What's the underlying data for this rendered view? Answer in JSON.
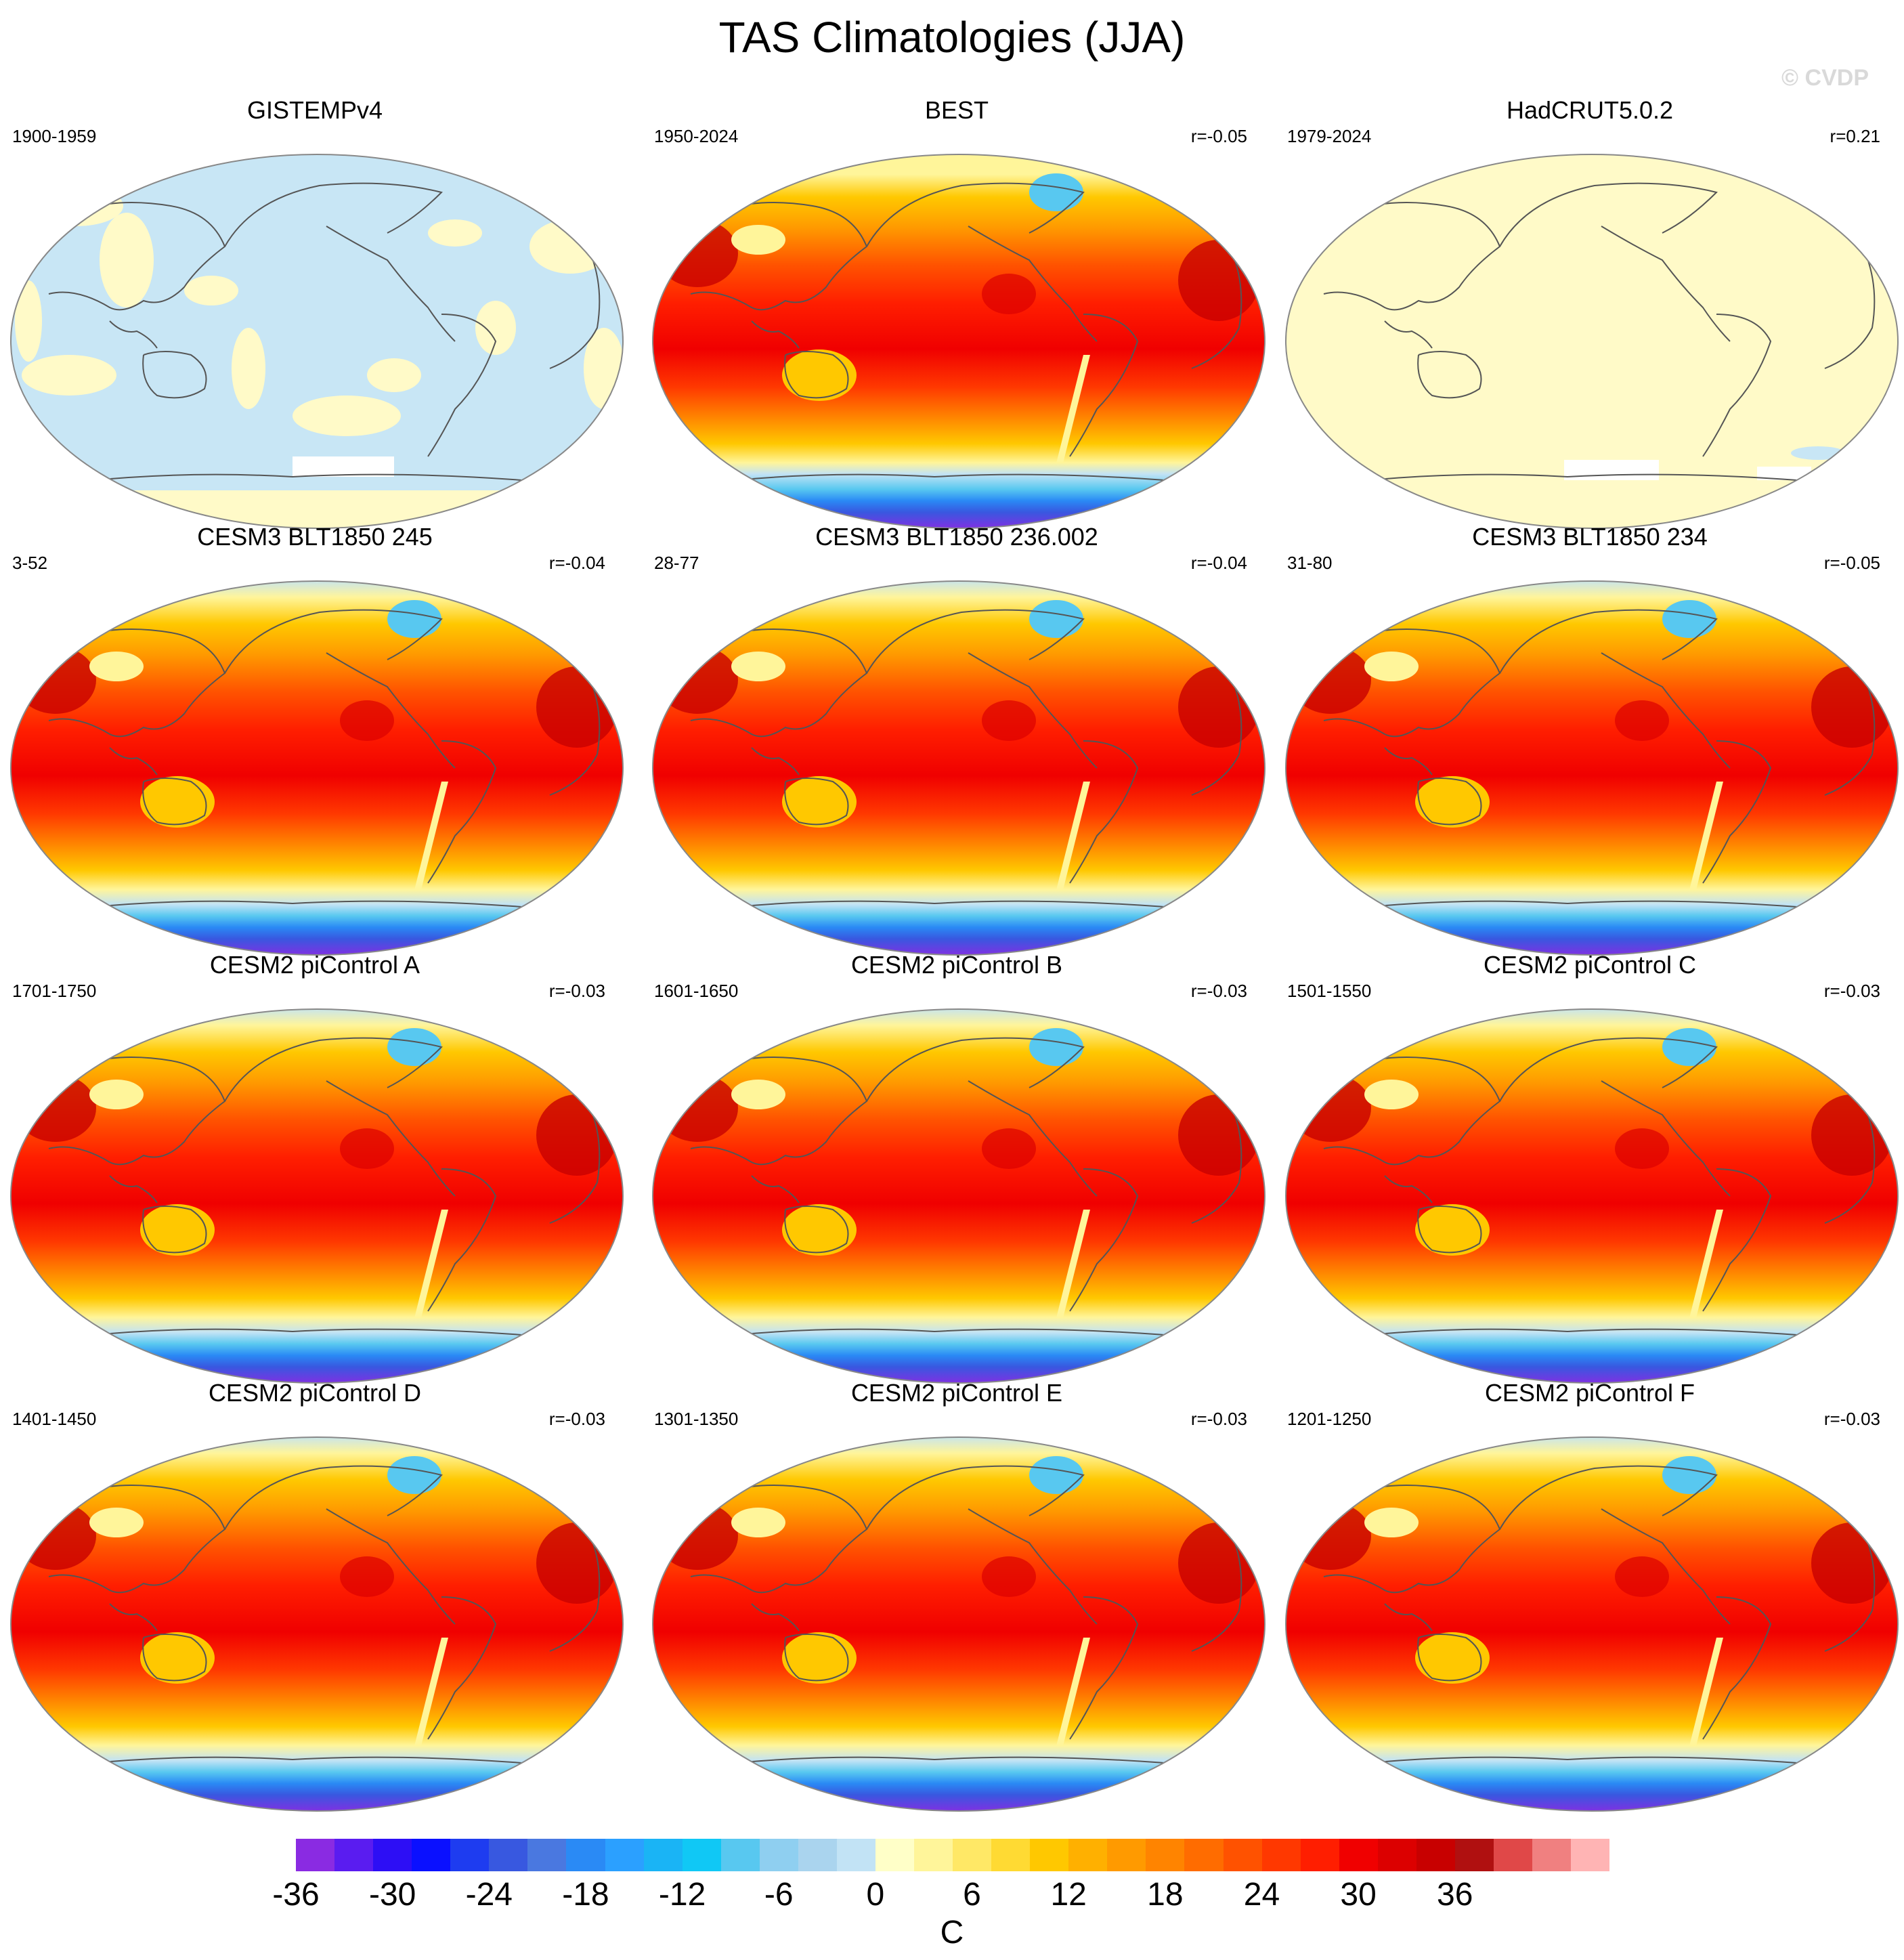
{
  "title": "TAS Climatologies (JJA)",
  "credit": "© CVDP",
  "panels": [
    {
      "title": "GISTEMPv4",
      "years": "1900-1959",
      "corr": "",
      "style": "sparse"
    },
    {
      "title": "BEST",
      "years": "1950-2024",
      "corr": "r=-0.05",
      "style": "best"
    },
    {
      "title": "HadCRUT5.0.2",
      "years": "1979-2024",
      "corr": "r=0.21",
      "style": "flat"
    },
    {
      "title": "CESM3 BLT1850 245",
      "years": "3-52",
      "corr": "r=-0.04",
      "style": "model"
    },
    {
      "title": "CESM3 BLT1850 236.002",
      "years": "28-77",
      "corr": "r=-0.04",
      "style": "model"
    },
    {
      "title": "CESM3 BLT1850 234",
      "years": "31-80",
      "corr": "r=-0.05",
      "style": "model"
    },
    {
      "title": "CESM2 piControl A",
      "years": "1701-1750",
      "corr": "r=-0.03",
      "style": "model"
    },
    {
      "title": "CESM2 piControl B",
      "years": "1601-1650",
      "corr": "r=-0.03",
      "style": "model"
    },
    {
      "title": "CESM2 piControl C",
      "years": "1501-1550",
      "corr": "r=-0.03",
      "style": "model"
    },
    {
      "title": "CESM2 piControl D",
      "years": "1401-1450",
      "corr": "r=-0.03",
      "style": "model"
    },
    {
      "title": "CESM2 piControl E",
      "years": "1301-1350",
      "corr": "r=-0.03",
      "style": "model"
    },
    {
      "title": "CESM2 piControl F",
      "years": "1201-1250",
      "corr": "r=-0.03",
      "style": "model"
    }
  ],
  "colorbar": {
    "unit": "C",
    "tick_labels": [
      "-36",
      "-30",
      "-24",
      "-18",
      "-12",
      "-6",
      "0",
      "6",
      "12",
      "18",
      "24",
      "30",
      "36"
    ],
    "colors": [
      "#8a2be2",
      "#5a1cf0",
      "#2d0ef5",
      "#0a10ff",
      "#1e3cf0",
      "#3858e0",
      "#4a78e0",
      "#2a8af5",
      "#2ba0ff",
      "#1ab4f5",
      "#10c8f5",
      "#58c8f0",
      "#8fcff0",
      "#aad4ee",
      "#c2e3f5",
      "#ffffc8",
      "#fff59a",
      "#ffe866",
      "#ffda33",
      "#ffc800",
      "#ffb000",
      "#ff9a00",
      "#ff8400",
      "#ff6c00",
      "#ff5200",
      "#ff3800",
      "#ff1e00",
      "#f00000",
      "#dc0000",
      "#c80000",
      "#b01010",
      "#e04848",
      "#f08080",
      "#ffb4b4"
    ]
  },
  "palette": {
    "ocean_light": "#c8e6f5",
    "pale_yellow": "#fffac8",
    "deep_purple": "#8a2be2",
    "coast": "#555555"
  }
}
